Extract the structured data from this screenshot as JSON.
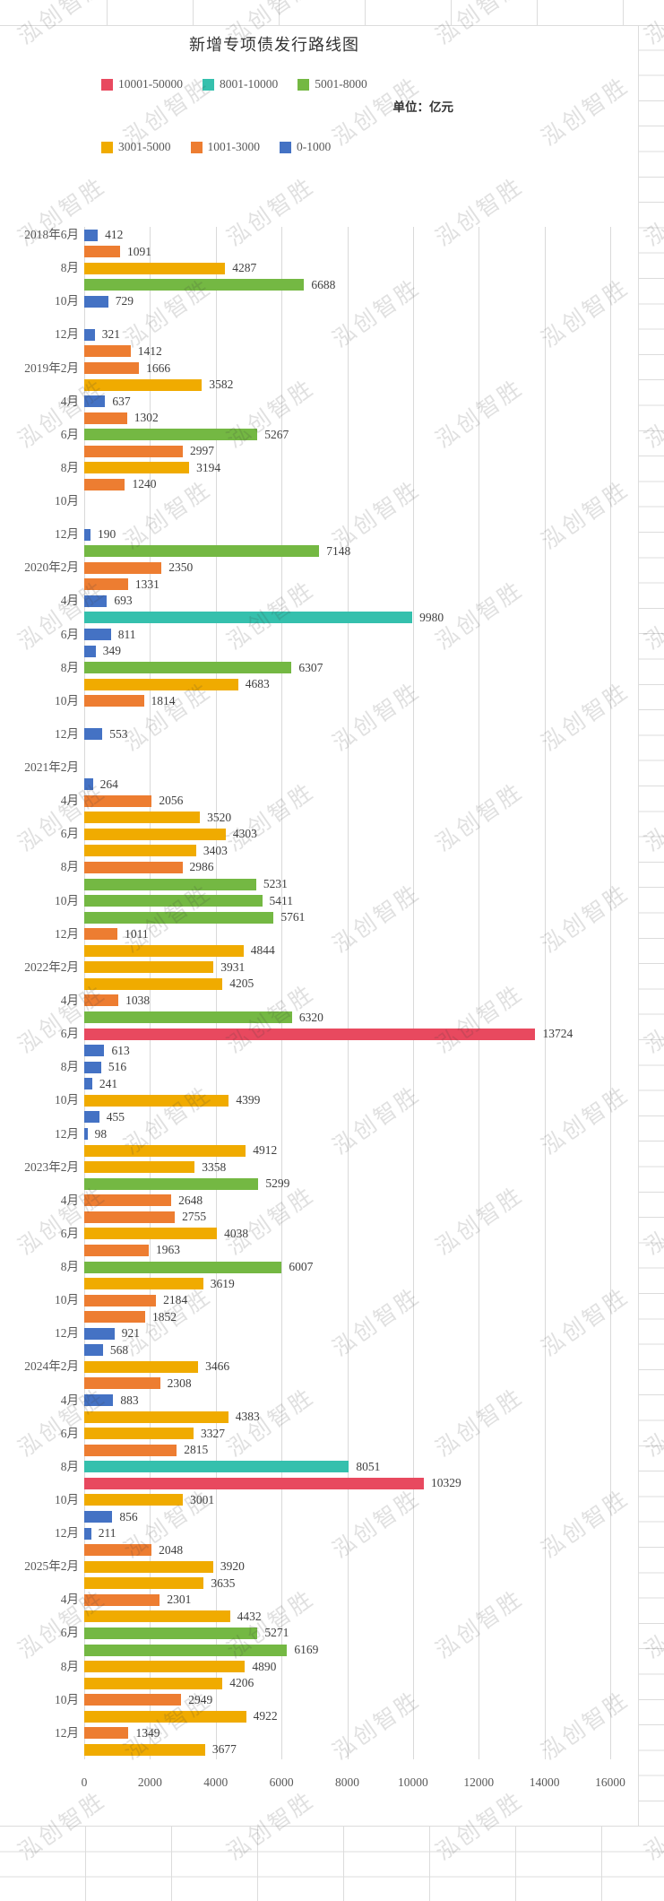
{
  "sheet": {
    "watermark_text": "泓创智胜"
  },
  "chart_data": {
    "type": "bar",
    "orientation": "horizontal",
    "title": "新增专项债发行路线图",
    "unit_label": "单位：亿元",
    "xlabel": "",
    "ylabel": "",
    "xlim": [
      0,
      16000
    ],
    "x_ticks": [
      0,
      2000,
      4000,
      6000,
      8000,
      10000,
      12000,
      14000,
      16000
    ],
    "grid": true,
    "legend_position": "top",
    "legend": [
      {
        "label": "10001-50000",
        "color": "#e8495f"
      },
      {
        "label": "8001-10000",
        "color": "#35c0ad"
      },
      {
        "label": "5001-8000",
        "color": "#74b843"
      },
      {
        "label": "3001-5000",
        "color": "#f0ab00"
      },
      {
        "label": "1001-3000",
        "color": "#ed7d31"
      },
      {
        "label": "0-1000",
        "color": "#4472c4"
      }
    ],
    "value_bins": [
      {
        "max": 1000,
        "color": "#4472c4"
      },
      {
        "max": 3000,
        "color": "#ed7d31"
      },
      {
        "max": 5000,
        "color": "#f0ab00"
      },
      {
        "max": 8000,
        "color": "#74b843"
      },
      {
        "max": 10000,
        "color": "#35c0ad"
      },
      {
        "max": 50000,
        "color": "#e8495f"
      }
    ],
    "rows": [
      {
        "month": "2018-06",
        "axis_label": "2018年6月",
        "value": 412
      },
      {
        "month": "2018-07",
        "axis_label": "",
        "value": 1091
      },
      {
        "month": "2018-08",
        "axis_label": "8月",
        "value": 4287
      },
      {
        "month": "2018-09",
        "axis_label": "",
        "value": 6688
      },
      {
        "month": "2018-10",
        "axis_label": "10月",
        "value": 729
      },
      {
        "month": "2018-11",
        "axis_label": "",
        "value": null
      },
      {
        "month": "2018-12",
        "axis_label": "12月",
        "value": 321
      },
      {
        "month": "2019-01",
        "axis_label": "",
        "value": 1412
      },
      {
        "month": "2019-02",
        "axis_label": "2019年2月",
        "value": 1666
      },
      {
        "month": "2019-03",
        "axis_label": "",
        "value": 3582
      },
      {
        "month": "2019-04",
        "axis_label": "4月",
        "value": 637
      },
      {
        "month": "2019-05",
        "axis_label": "",
        "value": 1302
      },
      {
        "month": "2019-06",
        "axis_label": "6月",
        "value": 5267
      },
      {
        "month": "2019-07",
        "axis_label": "",
        "value": 2997
      },
      {
        "month": "2019-08",
        "axis_label": "8月",
        "value": 3194
      },
      {
        "month": "2019-09",
        "axis_label": "",
        "value": 1240
      },
      {
        "month": "2019-10",
        "axis_label": "10月",
        "value": null
      },
      {
        "month": "2019-11",
        "axis_label": "",
        "value": null
      },
      {
        "month": "2019-12",
        "axis_label": "12月",
        "value": 190
      },
      {
        "month": "2020-01",
        "axis_label": "",
        "value": 7148
      },
      {
        "month": "2020-02",
        "axis_label": "2020年2月",
        "value": 2350
      },
      {
        "month": "2020-03",
        "axis_label": "",
        "value": 1331
      },
      {
        "month": "2020-04",
        "axis_label": "4月",
        "value": 693
      },
      {
        "month": "2020-05",
        "axis_label": "",
        "value": 9980
      },
      {
        "month": "2020-06",
        "axis_label": "6月",
        "value": 811
      },
      {
        "month": "2020-07",
        "axis_label": "",
        "value": 349
      },
      {
        "month": "2020-08",
        "axis_label": "8月",
        "value": 6307
      },
      {
        "month": "2020-09",
        "axis_label": "",
        "value": 4683
      },
      {
        "month": "2020-10",
        "axis_label": "10月",
        "value": 1814
      },
      {
        "month": "2020-11",
        "axis_label": "",
        "value": null
      },
      {
        "month": "2020-12",
        "axis_label": "12月",
        "value": 553
      },
      {
        "month": "2021-01",
        "axis_label": "",
        "value": null
      },
      {
        "month": "2021-02",
        "axis_label": "2021年2月",
        "value": null
      },
      {
        "month": "2021-03",
        "axis_label": "",
        "value": 264
      },
      {
        "month": "2021-04",
        "axis_label": "4月",
        "value": 2056
      },
      {
        "month": "2021-05",
        "axis_label": "",
        "value": 3520
      },
      {
        "month": "2021-06",
        "axis_label": "6月",
        "value": 4303
      },
      {
        "month": "2021-07",
        "axis_label": "",
        "value": 3403
      },
      {
        "month": "2021-08",
        "axis_label": "8月",
        "value": 2986
      },
      {
        "month": "2021-09",
        "axis_label": "",
        "value": 5231
      },
      {
        "month": "2021-10",
        "axis_label": "10月",
        "value": 5411
      },
      {
        "month": "2021-11",
        "axis_label": "",
        "value": 5761
      },
      {
        "month": "2021-12",
        "axis_label": "12月",
        "value": 1011
      },
      {
        "month": "2022-01",
        "axis_label": "",
        "value": 4844
      },
      {
        "month": "2022-02",
        "axis_label": "2022年2月",
        "value": 3931
      },
      {
        "month": "2022-03",
        "axis_label": "",
        "value": 4205
      },
      {
        "month": "2022-04",
        "axis_label": "4月",
        "value": 1038
      },
      {
        "month": "2022-05",
        "axis_label": "",
        "value": 6320
      },
      {
        "month": "2022-06",
        "axis_label": "6月",
        "value": 13724
      },
      {
        "month": "2022-07",
        "axis_label": "",
        "value": 613
      },
      {
        "month": "2022-08",
        "axis_label": "8月",
        "value": 516
      },
      {
        "month": "2022-09",
        "axis_label": "",
        "value": 241
      },
      {
        "month": "2022-10",
        "axis_label": "10月",
        "value": 4399
      },
      {
        "month": "2022-11",
        "axis_label": "",
        "value": 455
      },
      {
        "month": "2022-12",
        "axis_label": "12月",
        "value": 98
      },
      {
        "month": "2023-01",
        "axis_label": "",
        "value": 4912
      },
      {
        "month": "2023-02",
        "axis_label": "2023年2月",
        "value": 3358
      },
      {
        "month": "2023-03",
        "axis_label": "",
        "value": 5299
      },
      {
        "month": "2023-04",
        "axis_label": "4月",
        "value": 2648
      },
      {
        "month": "2023-05",
        "axis_label": "",
        "value": 2755
      },
      {
        "month": "2023-06",
        "axis_label": "6月",
        "value": 4038
      },
      {
        "month": "2023-07",
        "axis_label": "",
        "value": 1963
      },
      {
        "month": "2023-08",
        "axis_label": "8月",
        "value": 6007
      },
      {
        "month": "2023-09",
        "axis_label": "",
        "value": 3619
      },
      {
        "month": "2023-10",
        "axis_label": "10月",
        "value": 2184
      },
      {
        "month": "2023-11",
        "axis_label": "",
        "value": 1852
      },
      {
        "month": "2023-12",
        "axis_label": "12月",
        "value": 921
      },
      {
        "month": "2024-01",
        "axis_label": "",
        "value": 568
      },
      {
        "month": "2024-02",
        "axis_label": "2024年2月",
        "value": 3466
      },
      {
        "month": "2024-03",
        "axis_label": "",
        "value": 2308
      },
      {
        "month": "2024-04",
        "axis_label": "4月",
        "value": 883
      },
      {
        "month": "2024-05",
        "axis_label": "",
        "value": 4383
      },
      {
        "month": "2024-06",
        "axis_label": "6月",
        "value": 3327
      },
      {
        "month": "2024-07",
        "axis_label": "",
        "value": 2815
      },
      {
        "month": "2024-08",
        "axis_label": "8月",
        "value": 8051
      },
      {
        "month": "2024-09",
        "axis_label": "",
        "value": 10329
      },
      {
        "month": "2024-10",
        "axis_label": "10月",
        "value": 3001
      },
      {
        "month": "2024-11",
        "axis_label": "",
        "value": 856
      },
      {
        "month": "2024-12",
        "axis_label": "12月",
        "value": 211
      },
      {
        "month": "2025-01",
        "axis_label": "",
        "value": 2048
      },
      {
        "month": "2025-02",
        "axis_label": "2025年2月",
        "value": 3920
      },
      {
        "month": "2025-03",
        "axis_label": "",
        "value": 3635
      },
      {
        "month": "2025-04",
        "axis_label": "4月",
        "value": 2301
      },
      {
        "month": "2025-05",
        "axis_label": "",
        "value": 4432
      },
      {
        "month": "2025-06",
        "axis_label": "6月",
        "value": 5271
      },
      {
        "month": "2025-07",
        "axis_label": "",
        "value": 6169
      },
      {
        "month": "2025-08",
        "axis_label": "8月",
        "value": 4890
      },
      {
        "month": "2025-09",
        "axis_label": "",
        "value": 4206
      },
      {
        "month": "2025-10",
        "axis_label": "10月",
        "value": 2949
      },
      {
        "month": "2025-11",
        "axis_label": "",
        "value": 4922
      },
      {
        "month": "2025-12",
        "axis_label": "12月",
        "value": 1349
      },
      {
        "month": "2026-01",
        "axis_label": "",
        "value": 3677
      }
    ]
  }
}
